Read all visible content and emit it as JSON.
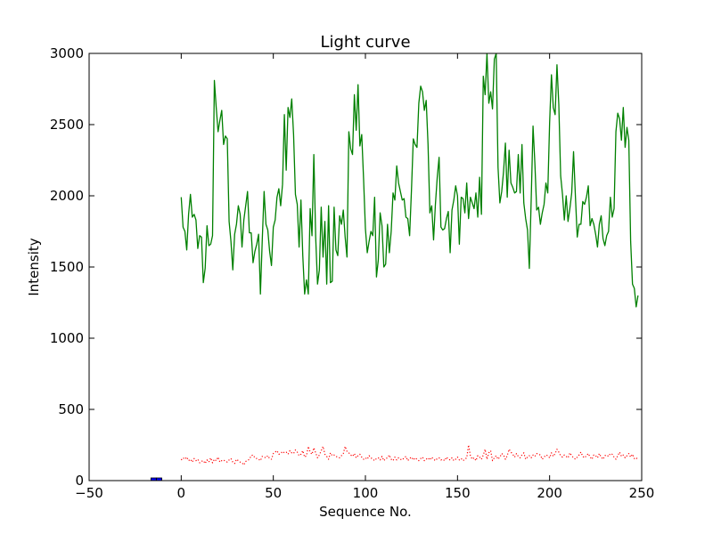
{
  "chart_data": {
    "type": "line",
    "title": "Light curve",
    "xlabel": "Sequence No.",
    "ylabel": "Intensity",
    "xlim": [
      -50,
      250
    ],
    "ylim": [
      0,
      3000
    ],
    "xticks": [
      -50,
      0,
      50,
      100,
      150,
      200,
      250
    ],
    "yticks": [
      0,
      500,
      1000,
      1500,
      2000,
      2500,
      3000
    ],
    "xtick_labels": [
      "−50",
      "0",
      "50",
      "100",
      "150",
      "200",
      "250"
    ],
    "ytick_labels": [
      "0",
      "500",
      "1000",
      "1500",
      "2000",
      "2500",
      "3000"
    ],
    "grid": false,
    "series": [
      {
        "style": "solid-line",
        "color": "#008000",
        "x_start": 0,
        "x_step": 1,
        "values": [
          1990,
          1780,
          1750,
          1620,
          1870,
          2010,
          1850,
          1870,
          1830,
          1630,
          1720,
          1710,
          1390,
          1490,
          1790,
          1650,
          1660,
          1720,
          2810,
          2620,
          2450,
          2530,
          2600,
          2360,
          2420,
          2400,
          1820,
          1680,
          1480,
          1730,
          1800,
          1930,
          1870,
          1640,
          1830,
          1930,
          2030,
          1740,
          1740,
          1530,
          1610,
          1660,
          1730,
          1310,
          1690,
          2030,
          1800,
          1760,
          1610,
          1510,
          1780,
          1830,
          1990,
          2050,
          1930,
          2080,
          2570,
          2180,
          2620,
          2550,
          2680,
          2430,
          2010,
          1940,
          1640,
          1970,
          1580,
          1310,
          1410,
          1310,
          1910,
          1720,
          2290,
          1710,
          1380,
          1480,
          1920,
          1570,
          1820,
          1380,
          1930,
          1390,
          1400,
          1920,
          1620,
          1580,
          1860,
          1800,
          1900,
          1710,
          1570,
          2450,
          2330,
          2290,
          2710,
          2460,
          2780,
          2350,
          2430,
          2120,
          1770,
          1600,
          1680,
          1750,
          1720,
          1990,
          1430,
          1550,
          1880,
          1790,
          1500,
          1520,
          1800,
          1600,
          1750,
          2020,
          1970,
          2210,
          2090,
          2030,
          1970,
          1980,
          1850,
          1840,
          1720,
          2040,
          2400,
          2360,
          2340,
          2650,
          2770,
          2730,
          2600,
          2670,
          2360,
          1880,
          1930,
          1690,
          1940,
          2130,
          2270,
          1780,
          1760,
          1770,
          1840,
          1890,
          1600,
          1900,
          1970,
          2070,
          2000,
          1660,
          1990,
          1980,
          1880,
          2090,
          1840,
          1990,
          1950,
          1910,
          2020,
          1850,
          2130,
          1870,
          2840,
          2710,
          3000,
          2650,
          2730,
          2610,
          2960,
          3000,
          2200,
          1950,
          2030,
          2170,
          2370,
          1990,
          2320,
          2090,
          2060,
          2020,
          2030,
          2290,
          2020,
          2360,
          1950,
          1840,
          1760,
          1490,
          1970,
          2490,
          2230,
          1900,
          1920,
          1800,
          1880,
          1940,
          2090,
          2020,
          2510,
          2850,
          2620,
          2570,
          2920,
          2640,
          2140,
          2010,
          1830,
          2000,
          1820,
          1910,
          2020,
          2310,
          2000,
          1710,
          1800,
          1800,
          1960,
          1940,
          1990,
          2070,
          1790,
          1840,
          1800,
          1730,
          1640,
          1800,
          1860,
          1700,
          1650,
          1720,
          1750,
          1990,
          1850,
          1910,
          2450,
          2580,
          2540,
          2390,
          2620,
          2340,
          2480,
          2390,
          1680,
          1380,
          1350,
          1220,
          1300
        ]
      },
      {
        "style": "dotted-line",
        "color": "#ff0000",
        "x_start": 0,
        "x_step": 1,
        "values": [
          145,
          160,
          150,
          165,
          140,
          150,
          130,
          155,
          140,
          150,
          125,
          135,
          140,
          120,
          145,
          130,
          160,
          125,
          150,
          140,
          165,
          130,
          140,
          145,
          135,
          130,
          145,
          155,
          130,
          120,
          150,
          140,
          130,
          125,
          110,
          135,
          140,
          150,
          175,
          180,
          160,
          155,
          150,
          140,
          170,
          165,
          160,
          175,
          155,
          150,
          190,
          200,
          210,
          185,
          190,
          205,
          195,
          200,
          185,
          210,
          195,
          190,
          215,
          200,
          175,
          185,
          210,
          165,
          175,
          240,
          200,
          185,
          230,
          195,
          160,
          180,
          210,
          240,
          185,
          170,
          150,
          195,
          175,
          180,
          170,
          165,
          160,
          175,
          190,
          240,
          205,
          195,
          180,
          170,
          190,
          160,
          175,
          185,
          165,
          150,
          160,
          150,
          175,
          160,
          150,
          140,
          155,
          160,
          145,
          170,
          140,
          155,
          160,
          180,
          150,
          140,
          165,
          145,
          160,
          150,
          145,
          160,
          170,
          140,
          155,
          165,
          145,
          160,
          150,
          140,
          155,
          165,
          140,
          150,
          160,
          145,
          165,
          150,
          140,
          155,
          160,
          145,
          150,
          140,
          165,
          150,
          145,
          160,
          140,
          150,
          165,
          145,
          155,
          140,
          150,
          160,
          250,
          175,
          150,
          160,
          140,
          175,
          165,
          150,
          180,
          220,
          150,
          195,
          210,
          140,
          160,
          175,
          150,
          165,
          190,
          180,
          150,
          175,
          220,
          200,
          185,
          165,
          190,
          170,
          160,
          180,
          195,
          150,
          165,
          175,
          160,
          180,
          170,
          190,
          185,
          180,
          150,
          165,
          180,
          175,
          160,
          195,
          170,
          190,
          220,
          200,
          175,
          165,
          180,
          170,
          160,
          195,
          175,
          160,
          150,
          165,
          180,
          200,
          170,
          160,
          175,
          190,
          165,
          150,
          180,
          175,
          160,
          190,
          165,
          150,
          175,
          180,
          170,
          190,
          185,
          165,
          150,
          175,
          200,
          170,
          180,
          160,
          175,
          190,
          165,
          185,
          155,
          150,
          170
        ]
      },
      {
        "style": "marker",
        "color": "#0000ff",
        "x": [
          -15,
          -12
        ],
        "values": [
          0,
          0
        ]
      }
    ]
  }
}
